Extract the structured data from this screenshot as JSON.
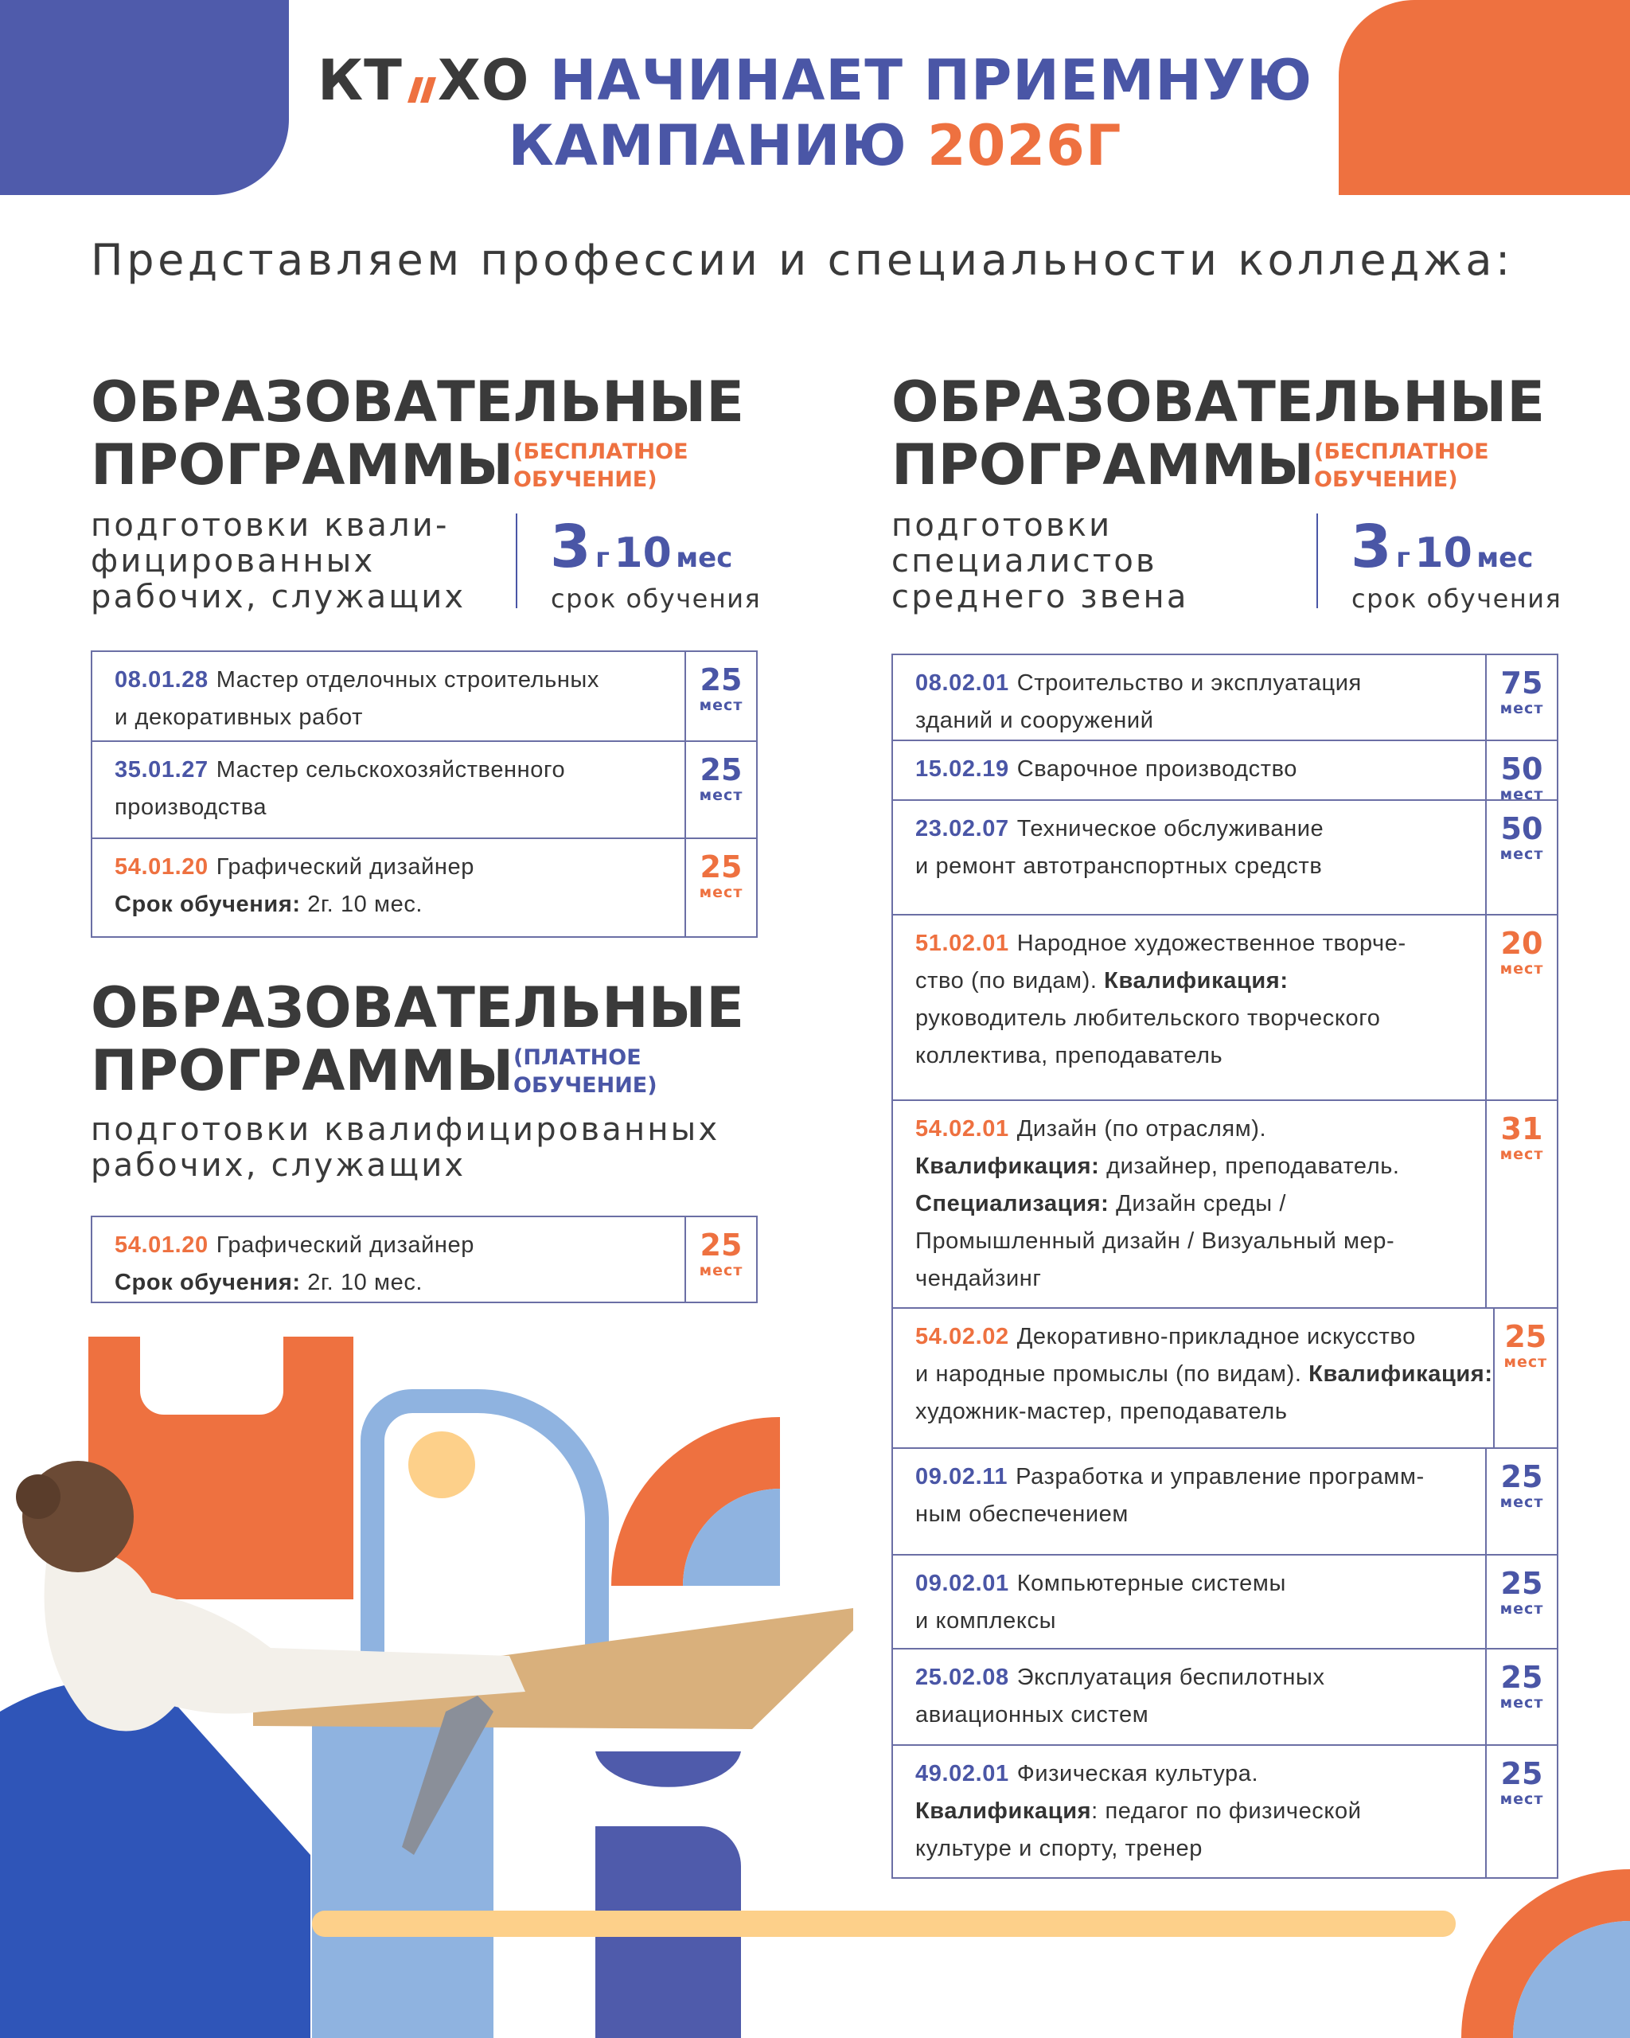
{
  "header": {
    "logo": [
      "КТ",
      "ХО"
    ],
    "title_line1": "НАЧИНАЕТ ПРИЕМНУЮ",
    "title_line2": "КАМПАНИЮ",
    "year": "2026Г"
  },
  "subtitle": "Представляем профессии и специальности колледжа:",
  "sections": [
    {
      "heading": [
        "ОБРАЗОВАТЕЛЬНЫЕ",
        "ПРОГРАММЫ"
      ],
      "note": [
        "(БЕСПЛАТНОЕ",
        "ОБУЧЕНИЕ)"
      ],
      "note_color": "#ee7140",
      "description": [
        "подготовки квали-",
        "фицированных",
        "рабочих, служащих"
      ],
      "duration": {
        "years": 3,
        "years_unit": "г",
        "months": 10,
        "months_unit": "мес",
        "label": "срок обучения"
      },
      "rows": [
        {
          "code": "08.01.28",
          "color": "#4a56a6",
          "lines": [
            [
              {
                "text": "Мастер отделочных строительных"
              }
            ],
            [
              {
                "text": "и декоративных работ"
              }
            ]
          ],
          "seats": 25,
          "seats_label": "мест"
        },
        {
          "code": "35.01.27",
          "color": "#4a56a6",
          "lines": [
            [
              {
                "text": "Мастер сельскохозяйственного"
              }
            ],
            [
              {
                "text": "производства"
              }
            ]
          ],
          "seats": 25,
          "seats_label": "мест"
        },
        {
          "code": "54.01.20",
          "color": "#ee7140",
          "lines": [
            [
              {
                "text": "Графический дизайнер"
              }
            ],
            [
              {
                "text": "Срок обучения:",
                "bold": true
              },
              {
                "text": " 2г. 10 мес."
              }
            ]
          ],
          "seats": 25,
          "seats_label": "мест"
        }
      ]
    },
    {
      "heading": [
        "ОБРАЗОВАТЕЛЬНЫЕ",
        "ПРОГРАММЫ"
      ],
      "note": [
        "(БЕСПЛАТНОЕ",
        "ОБУЧЕНИЕ)"
      ],
      "note_color": "#ee7140",
      "description": [
        "подготовки",
        "специалистов",
        "среднего звена"
      ],
      "duration": {
        "years": 3,
        "years_unit": "г",
        "months": 10,
        "months_unit": "мес",
        "label": "срок обучения"
      },
      "rows": [
        {
          "code": "08.02.01",
          "color": "#4a56a6",
          "lines": [
            [
              {
                "text": "Строительство и эксплуатация"
              }
            ],
            [
              {
                "text": "зданий и сооружений"
              }
            ]
          ],
          "seats": 75,
          "seats_label": "мест"
        },
        {
          "code": "15.02.19",
          "color": "#4a56a6",
          "lines": [
            [
              {
                "text": "Сварочное производство"
              }
            ]
          ],
          "seats": 50,
          "seats_label": "мест"
        },
        {
          "code": "23.02.07",
          "color": "#4a56a6",
          "lines": [
            [
              {
                "text": "Техническое обслуживание"
              }
            ],
            [
              {
                "text": "и ремонт автотранспортных средств"
              }
            ]
          ],
          "seats": 50,
          "seats_label": "мест"
        },
        {
          "code": "51.02.01",
          "color": "#ee7140",
          "lines": [
            [
              {
                "text": "Народное художественное творче-"
              }
            ],
            [
              {
                "text": "ство (по видам). "
              },
              {
                "text": "Квалификация:",
                "bold": true
              }
            ],
            [
              {
                "text": "руководитель любительского творческого"
              }
            ],
            [
              {
                "text": "коллектива, преподаватель"
              }
            ]
          ],
          "seats": 20,
          "seats_label": "мест"
        },
        {
          "code": "54.02.01",
          "color": "#ee7140",
          "lines": [
            [
              {
                "text": "Дизайн (по отраслям)."
              }
            ],
            [
              {
                "text": "Квалификация:",
                "bold": true
              },
              {
                "text": " дизайнер, преподаватель."
              }
            ],
            [
              {
                "text": "Специализация:",
                "bold": true
              },
              {
                "text": " Дизайн среды /"
              }
            ],
            [
              {
                "text": "Промышленный дизайн / Визуальный мер-"
              }
            ],
            [
              {
                "text": "чендайзинг"
              }
            ]
          ],
          "seats": 31,
          "seats_label": "мест"
        },
        {
          "code": "54.02.02",
          "color": "#ee7140",
          "lines": [
            [
              {
                "text": "Декоративно-прикладное искусство"
              }
            ],
            [
              {
                "text": "и народные промыслы (по видам). "
              },
              {
                "text": "Квалификация:",
                "bold": true
              }
            ],
            [
              {
                "text": "художник-мастер, преподаватель"
              }
            ]
          ],
          "seats": 25,
          "seats_label": "мест"
        },
        {
          "code": "09.02.11",
          "color": "#4a56a6",
          "lines": [
            [
              {
                "text": "Разработка и управление программ-"
              }
            ],
            [
              {
                "text": "ным обеспечением"
              }
            ]
          ],
          "seats": 25,
          "seats_label": "мест"
        },
        {
          "code": "09.02.01",
          "color": "#4a56a6",
          "lines": [
            [
              {
                "text": "Компьютерные системы"
              }
            ],
            [
              {
                "text": "и комплексы"
              }
            ]
          ],
          "seats": 25,
          "seats_label": "мест"
        },
        {
          "code": "25.02.08",
          "color": "#4a56a6",
          "lines": [
            [
              {
                "text": "Эксплуатация беспилотных"
              }
            ],
            [
              {
                "text": "авиационных систем"
              }
            ]
          ],
          "seats": 25,
          "seats_label": "мест"
        },
        {
          "code": "49.02.01",
          "color": "#4a56a6",
          "lines": [
            [
              {
                "text": "Физическая культура."
              }
            ],
            [
              {
                "text": "Квалификация",
                "bold": true
              },
              {
                "text": ": педагог по физической"
              }
            ],
            [
              {
                "text": "культуре и спорту, тренер"
              }
            ]
          ],
          "seats": 25,
          "seats_label": "мест"
        }
      ]
    },
    {
      "heading": [
        "ОБРАЗОВАТЕЛЬНЫЕ",
        "ПРОГРАММЫ"
      ],
      "note": [
        "(ПЛАТНОЕ",
        "ОБУЧЕНИЕ)"
      ],
      "note_color": "#4a56a6",
      "description": [
        "подготовки квалифицированных",
        "рабочих, служащих"
      ],
      "rows": [
        {
          "code": "54.01.20",
          "color": "#ee7140",
          "lines": [
            [
              {
                "text": "Графический дизайнер"
              }
            ],
            [
              {
                "text": "Срок обучения:",
                "bold": true
              },
              {
                "text": " 2г. 10 мес."
              }
            ]
          ],
          "seats": 25,
          "seats_label": "мест"
        }
      ]
    }
  ]
}
